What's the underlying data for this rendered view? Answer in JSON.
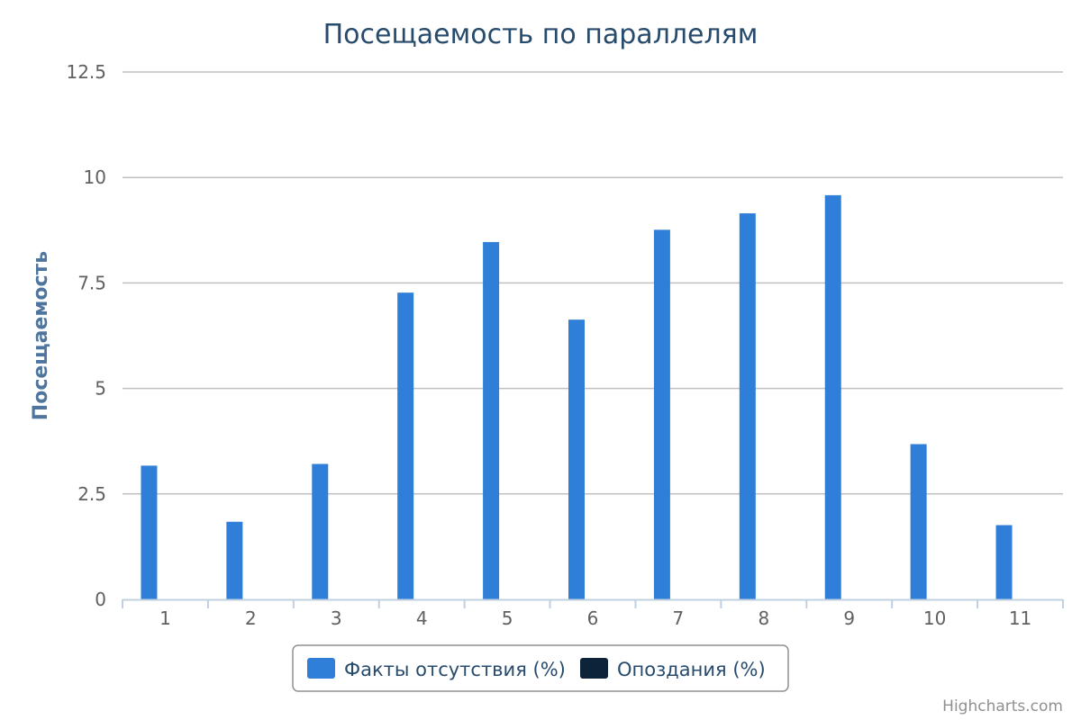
{
  "colors": {
    "series_absence": "#2f7ed8",
    "series_lateness": "#0d233a",
    "title": "#274b6d",
    "axis_title": "#4d759e",
    "grid": "#c0c0c0",
    "axis_line": "#c0d0e0",
    "tick_text": "#606060",
    "credits": "#909090"
  },
  "credits": "Highcharts.com",
  "chart_data": {
    "type": "bar",
    "title": "Посещаемость по параллелям",
    "xlabel": "",
    "ylabel": "Посещаемость",
    "categories": [
      "1",
      "2",
      "3",
      "4",
      "5",
      "6",
      "7",
      "8",
      "9",
      "10",
      "11"
    ],
    "ylim": [
      0,
      12.5
    ],
    "yticks": [
      "0",
      "2.5",
      "5",
      "7.5",
      "10",
      "12.5"
    ],
    "grid": true,
    "legend_position": "bottom-center",
    "series": [
      {
        "name": "Факты отсутствия (%)",
        "color": "#2f7ed8",
        "values": [
          3.17,
          1.84,
          3.21,
          7.27,
          8.47,
          6.63,
          8.76,
          9.15,
          9.58,
          3.68,
          1.76
        ]
      },
      {
        "name": "Опоздания (%)",
        "color": "#0d233a",
        "values": [
          0,
          0,
          0,
          0,
          0,
          0,
          0,
          0,
          0,
          0,
          0
        ]
      }
    ]
  }
}
